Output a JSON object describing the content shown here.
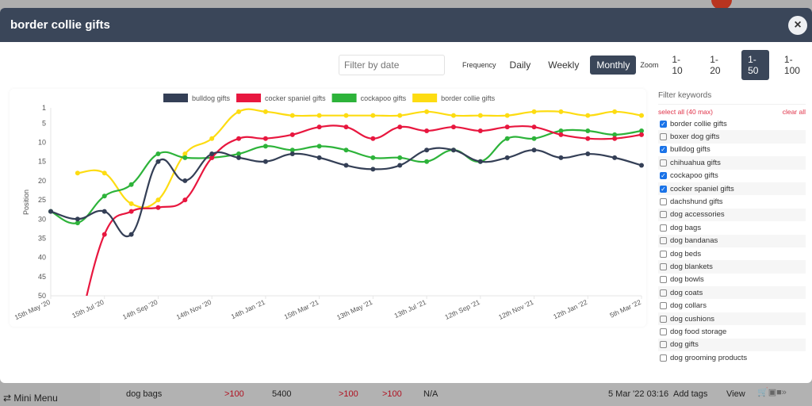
{
  "modal": {
    "title": "border collie gifts",
    "close_icon": "×"
  },
  "controls": {
    "filter_placeholder": "Filter by date",
    "frequency_label": "Frequency",
    "frequency_options": [
      "Daily",
      "Weekly",
      "Monthly"
    ],
    "frequency_selected": "Monthly",
    "zoom_label": "Zoom",
    "zoom_options": [
      "1-10",
      "1-20",
      "1-50",
      "1-100"
    ],
    "zoom_selected": "1-50"
  },
  "chart_data": {
    "type": "line",
    "ylabel": "Position",
    "ylim": [
      50,
      1
    ],
    "y_ticks": [
      1,
      5,
      10,
      15,
      20,
      25,
      30,
      35,
      40,
      45,
      50
    ],
    "x_ticks": [
      "15th May '20",
      "15th Jul '20",
      "14th Sep '20",
      "14th Nov '20",
      "14th Jan '21",
      "15th Mar '21",
      "13th May '21",
      "13th Jul '21",
      "12th Sep '21",
      "12th Nov '21",
      "12th Jan '22",
      "5th Mar '22"
    ],
    "x_count": 23,
    "series": [
      {
        "name": "bulldog gifts",
        "color": "#343f56",
        "values": [
          28,
          30,
          28,
          34,
          15,
          20,
          13,
          14,
          15,
          13,
          14,
          16,
          17,
          16,
          12,
          12,
          15,
          14,
          12,
          14,
          13,
          14,
          16
        ]
      },
      {
        "name": "cocker spaniel gifts",
        "color": "#e8173f",
        "values": [
          null,
          60,
          34,
          28,
          27,
          25,
          14,
          9,
          9,
          8,
          6,
          6,
          9,
          6,
          7,
          6,
          7,
          6,
          6,
          8,
          9,
          9,
          8
        ]
      },
      {
        "name": "cockapoo gifts",
        "color": "#2db33a",
        "values": [
          28,
          31,
          24,
          21,
          13,
          14,
          14,
          13,
          11,
          12,
          11,
          12,
          14,
          14,
          15,
          12,
          15,
          9,
          9,
          7,
          7,
          8,
          7
        ]
      },
      {
        "name": "border collie gifts",
        "color": "#fddc12",
        "values": [
          null,
          18,
          18,
          26,
          25,
          13,
          9,
          2,
          2,
          3,
          3,
          3,
          3,
          3,
          2,
          3,
          3,
          3,
          2,
          2,
          3,
          2,
          3
        ]
      }
    ],
    "legend": "top"
  },
  "keywords": {
    "title": "Filter keywords",
    "select_all": "select all (40 max)",
    "clear_all": "clear all",
    "items": [
      {
        "label": "border collie gifts",
        "checked": true
      },
      {
        "label": "boxer dog gifts",
        "checked": false
      },
      {
        "label": "bulldog gifts",
        "checked": true
      },
      {
        "label": "chihuahua gifts",
        "checked": false
      },
      {
        "label": "cockapoo gifts",
        "checked": true
      },
      {
        "label": "cocker spaniel gifts",
        "checked": true
      },
      {
        "label": "dachshund gifts",
        "checked": false
      },
      {
        "label": "dog accessories",
        "checked": false
      },
      {
        "label": "dog bags",
        "checked": false
      },
      {
        "label": "dog bandanas",
        "checked": false
      },
      {
        "label": "dog beds",
        "checked": false
      },
      {
        "label": "dog blankets",
        "checked": false
      },
      {
        "label": "dog bowls",
        "checked": false
      },
      {
        "label": "dog coats",
        "checked": false
      },
      {
        "label": "dog collars",
        "checked": false
      },
      {
        "label": "dog cushions",
        "checked": false
      },
      {
        "label": "dog food storage",
        "checked": false
      },
      {
        "label": "dog gifts",
        "checked": false
      },
      {
        "label": "dog grooming products",
        "checked": false
      }
    ]
  },
  "background_row": {
    "mini_menu": "Mini Menu",
    "keyword": "dog bags",
    "c1": ">100",
    "c2": "5400",
    "c3": ">100",
    "c4": ">100",
    "c5": "N/A",
    "date": "5 Mar '22 03:16",
    "add_tags": "Add tags",
    "view": "View"
  }
}
